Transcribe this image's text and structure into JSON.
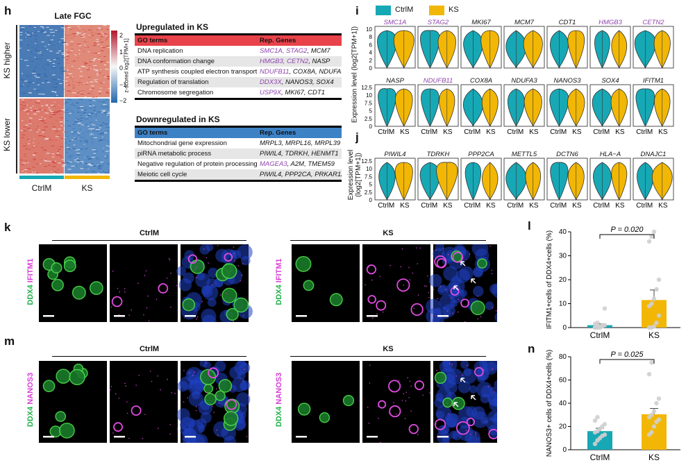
{
  "panel_h": {
    "label": "h",
    "title": "Late FGC",
    "row_labels": [
      "KS higher",
      "KS lower"
    ],
    "col_labels": [
      "CtrlM",
      "KS"
    ],
    "colorbar": {
      "title": "z-scored log2[TPM+1]",
      "ticks": [
        "2",
        "1",
        "0",
        "−1",
        "−2"
      ],
      "colors": [
        "#b2182b",
        "#f7f7f7",
        "#2166ac"
      ]
    },
    "up": {
      "title": "Upregulated  in KS",
      "header": [
        "GO terms",
        "Rep. Genes"
      ],
      "header_color": "#e8434b",
      "rows": [
        {
          "term": "DNA replication",
          "genes_hl": "SMC1A, STAG2",
          "genes": ", MCM7"
        },
        {
          "term": "DNA conformation change",
          "genes_hl": "HMGB3, CETN2",
          "genes": ", NASP"
        },
        {
          "term": "ATP synthesis coupled electron transport",
          "genes_hl": "NDUFB11",
          "genes": ", COX8A, NDUFA3"
        },
        {
          "term": "Regulation of translation",
          "genes_hl": "DDX3X",
          "genes": ", NANOS3, SOX4"
        },
        {
          "term": "Chromosome segregation",
          "genes_hl": "USP9X",
          "genes": ", MKI67, CDT1"
        }
      ]
    },
    "down": {
      "title": "Downregulated  in KS",
      "header": [
        "GO terms",
        "Rep. Genes"
      ],
      "header_color": "#3e82c6",
      "rows": [
        {
          "term": "Mitochondrial gene expression",
          "genes_hl": "",
          "genes": "MRPL3, MRPL16, MRPL39"
        },
        {
          "term": "piRNA metabolic process",
          "genes_hl": "",
          "genes": "PIWIL4, TDRKH, HENMT1"
        },
        {
          "term": "Negative regulation of protein processing",
          "genes_hl": "MAGEA3",
          "genes": ", A2M, TMEM59"
        },
        {
          "term": "Meiotic cell cycle",
          "genes_hl": "",
          "genes": "PIWIL4, PPP2CA, PRKAR1A"
        }
      ]
    }
  },
  "panel_i": {
    "label": "i",
    "legend": [
      {
        "name": "CtrlM",
        "color": "#17a8b5"
      },
      {
        "name": "KS",
        "color": "#f2b705"
      }
    ],
    "ylabel": "Expression level (log2[TPM+1])",
    "row1": {
      "genes": [
        "SMC1A",
        "STAG2",
        "MKI67",
        "MCM7",
        "CDT1",
        "HMGB3",
        "CETN2"
      ],
      "purple": [
        true,
        true,
        false,
        false,
        false,
        true,
        true
      ],
      "ticks": [
        "10",
        "8",
        "6",
        "4",
        "2",
        "0"
      ]
    },
    "row2": {
      "genes": [
        "NASP",
        "NDUFB11",
        "COX8A",
        "NDUFA3",
        "NANOS3",
        "SOX4",
        "IFITM1"
      ],
      "purple": [
        false,
        true,
        false,
        false,
        false,
        false,
        false
      ],
      "ticks": [
        "12.5",
        "10",
        "7.5",
        "5",
        "2.5",
        "0"
      ]
    },
    "x_labels": [
      "CtrlM",
      "KS"
    ]
  },
  "panel_j": {
    "label": "j",
    "ylabel": "Expression level (log2[TPM+1])",
    "genes": [
      "PIWIL4",
      "TDRKH",
      "PPP2CA",
      "METTL5",
      "DCTN6",
      "HLA−A",
      "DNAJC1"
    ],
    "ticks": [
      "12.5",
      "10",
      "7.5",
      "5",
      "2.5",
      "0"
    ],
    "x_labels": [
      "CtrlM",
      "KS"
    ]
  },
  "panel_k": {
    "label": "k",
    "groups": [
      "CtrlM",
      "KS"
    ],
    "stain_a": "DDX4",
    "stain_b": "IFITM1"
  },
  "panel_m": {
    "label": "m",
    "groups": [
      "CtrlM",
      "KS"
    ],
    "stain_a": "DDX4",
    "stain_b": "NANOS3"
  },
  "panel_l": {
    "label": "l",
    "ylabel": "IFITM1+cells of DDX4+cells (%)",
    "pvalue": "P = 0.020",
    "chart_data": {
      "type": "bar",
      "categories": [
        "CtrlM",
        "KS"
      ],
      "values": [
        1.0,
        11.5
      ],
      "errors": [
        0.6,
        4.2
      ],
      "ylim": [
        0,
        40
      ],
      "yticks": [
        0,
        10,
        20,
        30,
        40
      ],
      "colors": [
        "#17a8b5",
        "#f2b705"
      ],
      "points": [
        [
          0,
          0,
          0,
          0.5,
          1,
          1.5,
          2,
          0.5,
          1,
          8,
          0,
          0.3
        ],
        [
          0,
          0,
          0.5,
          2,
          5,
          9,
          10,
          12,
          16,
          20,
          36,
          38,
          40
        ]
      ]
    }
  },
  "panel_n": {
    "label": "n",
    "ylabel": "NANOS3+ cells of DDX4+cells (%)",
    "pvalue": "P = 0.025",
    "chart_data": {
      "type": "bar",
      "categories": [
        "CtrlM",
        "KS"
      ],
      "values": [
        16,
        30.5
      ],
      "errors": [
        2.5,
        5
      ],
      "ylim": [
        0,
        80
      ],
      "yticks": [
        0,
        20,
        40,
        60,
        80
      ],
      "colors": [
        "#17a8b5",
        "#f2b705"
      ],
      "points": [
        [
          5,
          8,
          10,
          12,
          13,
          15,
          16,
          18,
          20,
          22,
          25,
          28
        ],
        [
          13,
          15,
          20,
          24,
          26,
          28,
          30,
          33,
          40,
          44,
          65,
          75
        ]
      ]
    }
  }
}
